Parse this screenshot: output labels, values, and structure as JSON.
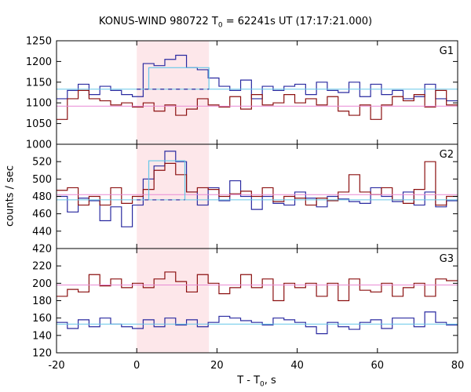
{
  "title": {
    "main": "KONUS-WIND 980722 T",
    "sub": "0",
    "rest": " = 62241s UT (17:17:21.000)"
  },
  "xlabel": {
    "main": "T - T",
    "sub": "0",
    "rest": ", s"
  },
  "ylabel": "counts / sec",
  "chart_data": {
    "type": "line",
    "style": "step histogram, 3 stacked panels sharing x axis",
    "xlim": [
      -20,
      80
    ],
    "xticks": [
      -20,
      0,
      20,
      40,
      60,
      80
    ],
    "highlight_interval": {
      "x": [
        0,
        18
      ],
      "color": "#fde7ea"
    },
    "colors": {
      "blue": "#2a2aa0",
      "red": "#8b1010",
      "cyan": "#66c8e8",
      "pink": "#e88ad4"
    },
    "panels": [
      {
        "name": "G1",
        "ylim": [
          1000,
          1250
        ],
        "yticks": [
          1000,
          1050,
          1100,
          1150,
          1200,
          1250
        ],
        "ytick_labels": [
          "1000",
          "1050",
          "1100",
          "1150",
          "1200",
          "1250"
        ],
        "edges": [
          -20,
          -17.3,
          -14.6,
          -11.9,
          -9.2,
          -6.5,
          -3.8,
          -1.1,
          1.6,
          4.3,
          7.0,
          9.7,
          12.4,
          15.1,
          17.8,
          20.5,
          23.2,
          25.9,
          28.6,
          31.3,
          34.0,
          36.7,
          39.4,
          42.1,
          44.8,
          47.5,
          50.2,
          52.9,
          55.6,
          58.3,
          61.0,
          63.7,
          66.4,
          69.1,
          71.8,
          74.5,
          77.2,
          80
        ],
        "series": [
          {
            "name": "G1 blue",
            "color": "blue",
            "values": [
              1110,
              1130,
              1145,
              1120,
              1140,
              1130,
              1120,
              1115,
              1195,
              1190,
              1205,
              1215,
              1185,
              1180,
              1160,
              1140,
              1130,
              1155,
              1110,
              1140,
              1130,
              1140,
              1145,
              1120,
              1150,
              1130,
              1125,
              1150,
              1115,
              1145,
              1120,
              1130,
              1110,
              1115,
              1145,
              1110,
              1105
            ]
          },
          {
            "name": "G1 red",
            "color": "red",
            "values": [
              1060,
              1110,
              1130,
              1110,
              1105,
              1095,
              1100,
              1090,
              1100,
              1080,
              1095,
              1070,
              1085,
              1110,
              1095,
              1090,
              1115,
              1085,
              1120,
              1095,
              1100,
              1120,
              1100,
              1110,
              1095,
              1115,
              1080,
              1070,
              1095,
              1060,
              1095,
              1115,
              1105,
              1120,
              1090,
              1130,
              1095
            ]
          },
          {
            "name": "G1 background",
            "color": "cyan",
            "kind": "hline",
            "value": 1133
          },
          {
            "name": "G1 red mean",
            "color": "pink",
            "kind": "hline",
            "value": 1092
          },
          {
            "name": "G1 burst mean",
            "color": "cyan",
            "kind": "box",
            "x": [
              3,
              18
            ],
            "value": 1185,
            "baseline": 1133
          },
          {
            "name": "G1 burst baseline",
            "color": "blue",
            "kind": "dash",
            "x": [
              0,
              18
            ],
            "value": 1133
          }
        ]
      },
      {
        "name": "G2",
        "ylim": [
          420,
          540
        ],
        "yticks": [
          420,
          440,
          460,
          480,
          500,
          520
        ],
        "ytick_labels": [
          "420",
          "440",
          "460",
          "480",
          "500",
          "520"
        ],
        "edges": [
          -20,
          -17.3,
          -14.6,
          -11.9,
          -9.2,
          -6.5,
          -3.8,
          -1.1,
          1.6,
          4.3,
          7.0,
          9.7,
          12.4,
          15.1,
          17.8,
          20.5,
          23.2,
          25.9,
          28.6,
          31.3,
          34.0,
          36.7,
          39.4,
          42.1,
          44.8,
          47.5,
          50.2,
          52.9,
          55.6,
          58.3,
          61.0,
          63.7,
          66.4,
          69.1,
          71.8,
          74.5,
          77.2,
          80
        ],
        "series": [
          {
            "name": "G2 blue",
            "color": "blue",
            "values": [
              480,
              462,
              478,
              475,
              452,
              468,
              445,
              470,
              500,
              515,
              532,
              520,
              485,
              470,
              490,
              475,
              498,
              480,
              465,
              480,
              472,
              470,
              485,
              478,
              468,
              480,
              477,
              474,
              472,
              490,
              480,
              474,
              485,
              470,
              485,
              468,
              475
            ]
          },
          {
            "name": "G2 red",
            "color": "red",
            "values": [
              487,
              490,
              470,
              480,
              470,
              490,
              472,
              480,
              488,
              510,
              518,
              505,
              485,
              490,
              488,
              480,
              483,
              486,
              480,
              490,
              474,
              480,
              478,
              470,
              478,
              475,
              485,
              505,
              485,
              482,
              490,
              476,
              472,
              488,
              520,
              470,
              480
            ]
          },
          {
            "name": "G2 background",
            "color": "cyan",
            "kind": "hline",
            "value": 476
          },
          {
            "name": "G2 red mean",
            "color": "pink",
            "kind": "hline",
            "value": 482
          },
          {
            "name": "G2 burst mean",
            "color": "cyan",
            "kind": "box",
            "x": [
              3,
              12
            ],
            "value": 521,
            "baseline": 476
          },
          {
            "name": "G2 burst baseline",
            "color": "blue",
            "kind": "dash",
            "x": [
              0,
              12
            ],
            "value": 476
          }
        ]
      },
      {
        "name": "G3",
        "ylim": [
          120,
          240
        ],
        "yticks": [
          120,
          140,
          160,
          180,
          200,
          220
        ],
        "ytick_labels": [
          "120",
          "140",
          "160",
          "180",
          "200",
          "220"
        ],
        "edges": [
          -20,
          -17.3,
          -14.6,
          -11.9,
          -9.2,
          -6.5,
          -3.8,
          -1.1,
          1.6,
          4.3,
          7.0,
          9.7,
          12.4,
          15.1,
          17.8,
          20.5,
          23.2,
          25.9,
          28.6,
          31.3,
          34.0,
          36.7,
          39.4,
          42.1,
          44.8,
          47.5,
          50.2,
          52.9,
          55.6,
          58.3,
          61.0,
          63.7,
          66.4,
          69.1,
          71.8,
          74.5,
          77.2,
          80
        ],
        "series": [
          {
            "name": "G3 blue",
            "color": "blue",
            "values": [
              155,
              148,
              158,
              150,
              160,
              153,
              150,
              148,
              158,
              150,
              160,
              152,
              158,
              150,
              155,
              162,
              160,
              157,
              155,
              152,
              160,
              158,
              155,
              150,
              142,
              155,
              150,
              147,
              155,
              158,
              148,
              160,
              160,
              150,
              167,
              155,
              152
            ]
          },
          {
            "name": "G3 red",
            "color": "red",
            "values": [
              185,
              193,
              190,
              210,
              197,
              205,
              195,
              200,
              195,
              205,
              213,
              202,
              190,
              210,
              200,
              188,
              195,
              210,
              195,
              205,
              180,
              200,
              195,
              200,
              185,
              200,
              180,
              205,
              192,
              190,
              200,
              185,
              195,
              200,
              185,
              205,
              203
            ]
          },
          {
            "name": "G3 background",
            "color": "cyan",
            "kind": "hline",
            "value": 153
          },
          {
            "name": "G3 red mean",
            "color": "pink",
            "kind": "hline",
            "value": 198
          }
        ]
      }
    ]
  }
}
